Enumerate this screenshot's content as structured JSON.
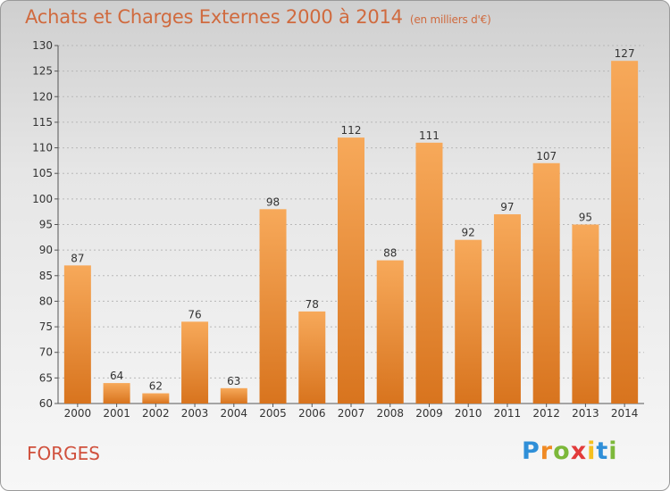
{
  "header": {
    "title": "Achats et Charges Externes 2000 à 2014",
    "unit": "(en milliers d'€)"
  },
  "footer": {
    "commune": "FORGES",
    "logo_text": "Proxiti"
  },
  "colors": {
    "title": "#d06a3e",
    "commune": "#d0503c",
    "bar_light": "#f7a95a",
    "bar_dark": "#d8741e",
    "logo": [
      "#2f8fd8",
      "#f08a24",
      "#7cb83a",
      "#e23b3b",
      "#f5c020",
      "#2f8fd8",
      "#7cb83a"
    ]
  },
  "chart_data": {
    "type": "bar",
    "title": "Achats et Charges Externes 2000 à 2014",
    "subtitle": "(en milliers d'€)",
    "xlabel": "",
    "ylabel": "",
    "categories": [
      "2000",
      "2001",
      "2002",
      "2003",
      "2004",
      "2005",
      "2006",
      "2007",
      "2008",
      "2009",
      "2010",
      "2011",
      "2012",
      "2013",
      "2014"
    ],
    "values": [
      87,
      64,
      62,
      76,
      63,
      98,
      78,
      112,
      88,
      111,
      92,
      97,
      107,
      95,
      127
    ],
    "ylim": [
      60,
      130
    ],
    "yticks": [
      60,
      65,
      70,
      75,
      80,
      85,
      90,
      95,
      100,
      105,
      110,
      115,
      120,
      125,
      130
    ],
    "grid": true,
    "legend": "none"
  }
}
